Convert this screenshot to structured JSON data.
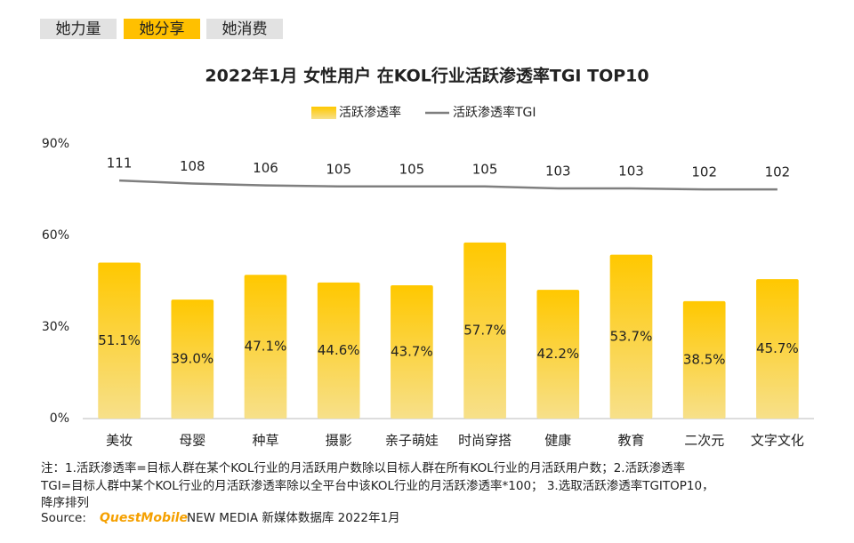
{
  "tabs": [
    "她力量",
    "她分享",
    "她消费"
  ],
  "active_tab": 1,
  "chart_data": {
    "type": "bar",
    "title": "2022年1月 女性用户 在KOL行业活跃渗透率TGI TOP10",
    "categories": [
      "美妆",
      "母婴",
      "种草",
      "摄影",
      "亲子萌娃",
      "时尚穿搭",
      "健康",
      "教育",
      "二次元",
      "文字文化"
    ],
    "series": [
      {
        "name": "活跃渗透率",
        "type": "bar",
        "color": "#FFC000",
        "values": [
          51.1,
          39.0,
          47.1,
          44.6,
          43.7,
          57.7,
          42.2,
          53.7,
          38.5,
          45.7
        ],
        "value_labels": [
          "51.1%",
          "39.0%",
          "47.1%",
          "44.6%",
          "43.7%",
          "57.7%",
          "42.2%",
          "53.7%",
          "38.5%",
          "45.7%"
        ]
      },
      {
        "name": "活跃渗透率TGI",
        "type": "line",
        "axis": "y2",
        "color": "#7f7f7f",
        "values": [
          111,
          108,
          106,
          105,
          105,
          105,
          103,
          103,
          102,
          102
        ]
      }
    ],
    "ylim": [
      0,
      90
    ],
    "yticks": [
      {
        "value": 0,
        "label": "0%"
      },
      {
        "value": 30,
        "label": "30%"
      },
      {
        "value": 60,
        "label": "60%"
      },
      {
        "value": 90,
        "label": "90%"
      }
    ],
    "y2lim": [
      -130,
      148
    ],
    "grid": false,
    "legend": "top"
  },
  "note": [
    "注：1.活跃渗透率=目标人群在某个KOL行业的月活跃用户数除以目标人群在所有KOL行业的月活跃用户数；2.活跃渗透率",
    "TGI=目标人群中某个KOL行业的月活跃渗透率除以全平台中该KOL行业的月活跃渗透率*100； 3.选取活跃渗透率TGITOP10，",
    "降序排列"
  ],
  "source": {
    "label": "Source:",
    "brand": "QuestMobile",
    "text": "NEW MEDIA 新媒体数据库 2022年1月"
  }
}
